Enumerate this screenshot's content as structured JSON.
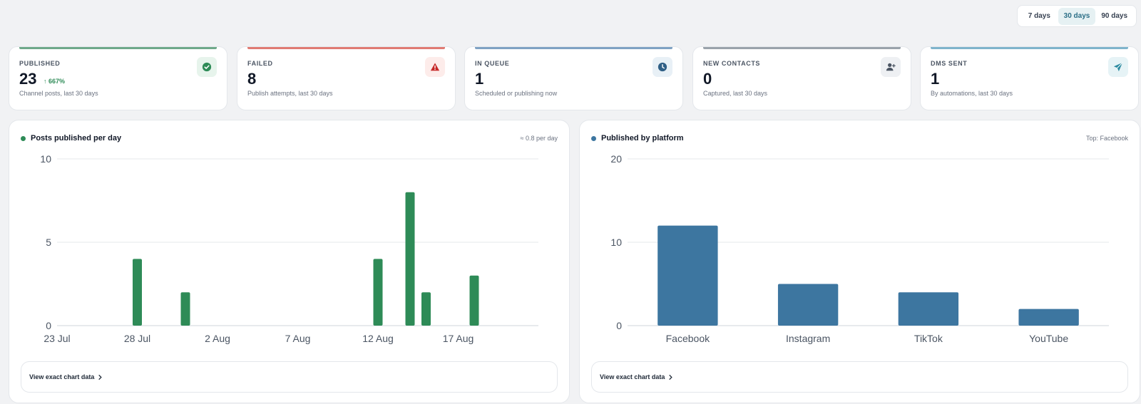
{
  "range_selector": {
    "options": [
      "7 days",
      "30 days",
      "90 days"
    ],
    "active": "30 days"
  },
  "kpis": [
    {
      "label": "PUBLISHED",
      "value": "23",
      "delta": "↑ 667%",
      "sub": "Channel posts, last 30 days",
      "icon": "check-circle-icon",
      "accent": "#6fa98a",
      "icon_bg": "#e7f4ec",
      "icon_color": "#2e8b57"
    },
    {
      "label": "FAILED",
      "value": "8",
      "sub": "Publish attempts, last 30 days",
      "icon": "warning-icon",
      "accent": "#e07a73",
      "icon_bg": "#fdecea",
      "icon_color": "#c62828"
    },
    {
      "label": "IN QUEUE",
      "value": "1",
      "sub": "Scheduled or publishing now",
      "icon": "clock-icon",
      "accent": "#7fa2c3",
      "icon_bg": "#e8f0f6",
      "icon_color": "#2f5f86"
    },
    {
      "label": "NEW CONTACTS",
      "value": "0",
      "sub": "Captured, last 30 days",
      "icon": "add-user-icon",
      "accent": "#9aa3ab",
      "icon_bg": "#eef0f3",
      "icon_color": "#4b5563"
    },
    {
      "label": "DMS SENT",
      "value": "1",
      "sub": "By automations, last 30 days",
      "icon": "send-icon",
      "accent": "#7fb4cc",
      "icon_bg": "#e6f3f6",
      "icon_color": "#2b8aa0"
    }
  ],
  "panels": {
    "posts": {
      "title": "Posts published per day",
      "note": "≈ 0.8 per day",
      "dot_color": "#2e8b57",
      "view_label": "View exact chart data"
    },
    "platform": {
      "title": "Published by platform",
      "note": "Top: Facebook",
      "dot_color": "#3d76a0",
      "view_label": "View exact chart data"
    }
  },
  "chart_data": [
    {
      "type": "bar",
      "title": "Posts published per day",
      "x_tick_labels": [
        "23 Jul",
        "28 Jul",
        "2 Aug",
        "7 Aug",
        "12 Aug",
        "17 Aug"
      ],
      "x_start": "23 Jul",
      "x_end": "22 Aug",
      "dates": [
        "28 Jul",
        "31 Jul",
        "12 Aug",
        "14 Aug",
        "15 Aug",
        "18 Aug"
      ],
      "values": [
        4,
        2,
        4,
        8,
        2,
        3
      ],
      "ylim": [
        0,
        10
      ],
      "yticks": [
        0,
        5,
        10
      ],
      "color": "#2e8b57",
      "grid": true
    },
    {
      "type": "bar",
      "title": "Published by platform",
      "categories": [
        "Facebook",
        "Instagram",
        "TikTok",
        "YouTube"
      ],
      "values": [
        12,
        5,
        4,
        2
      ],
      "ylim": [
        0,
        20
      ],
      "yticks": [
        0,
        10,
        20
      ],
      "color": "#3d76a0",
      "grid": true
    }
  ]
}
